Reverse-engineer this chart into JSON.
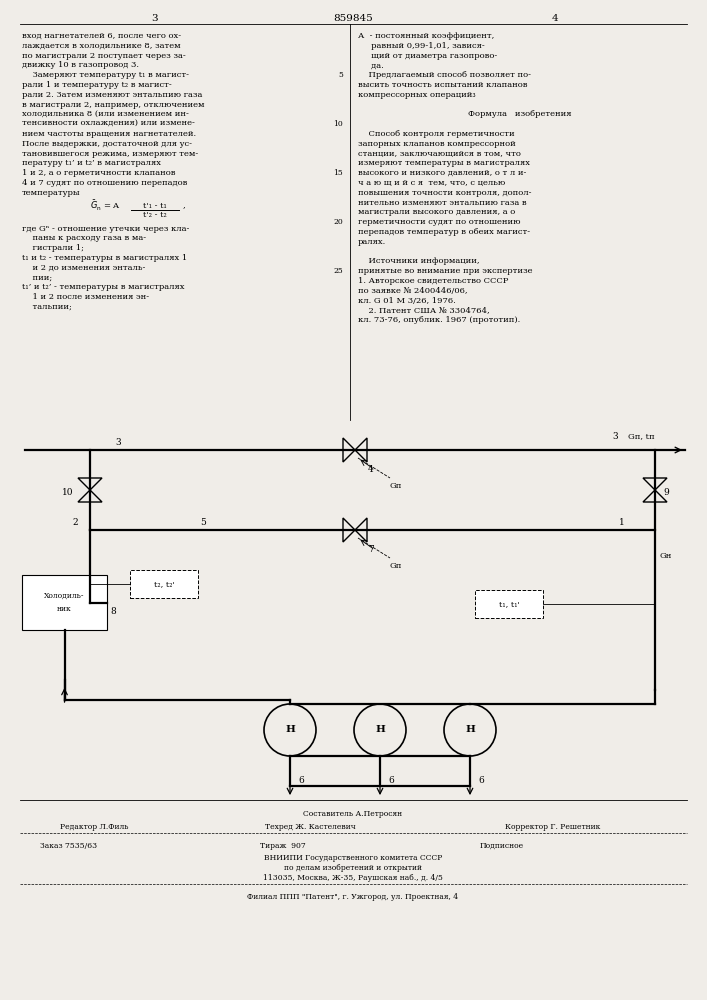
{
  "bg_color": "#f0ede8",
  "page_width": 7.07,
  "page_height": 10.0,
  "patent_number": "859845",
  "page_left": "3",
  "page_right": "4",
  "text_left_col": [
    "вход нагнетателей 6, после чего ох-",
    "лаждается в холодильнике 8, затем",
    "по магистрали 2 поступает через за-",
    "движку 10 в газопровод 3.",
    "    Замеряют температуру t₁ в магист-",
    "рали 1 и температуру t₂ в магист-",
    "рали 2. Затем изменяют энтальпию газа",
    "в магистрали 2, например, отключением",
    "холодильника 8 (или изменением ин-",
    "тенсивности охлаждения) или измене-",
    "нием частоты вращения нагнетателей.",
    "После выдержки, достаточной для ус-",
    "тановившегося режима, измеряют тем-",
    "пературу t₁’ и t₂’ в магистралях",
    "1 и 2, а о герметичности клапанов",
    "4 и 7 судят по отношению перепадов",
    "температуры"
  ],
  "text_left_where": [
    "где Gⁿ - отношение утечки через кла-",
    "    паны к расходу газа в ма-",
    "    гистрали 1;",
    "t₁ и t₂ - температуры в магистралях 1",
    "    и 2 до изменения энталь-",
    "    пии;",
    "t₁’ и t₂’ - температуры в магистралях",
    "    1 и 2 после изменения эн-",
    "    тальпии;"
  ],
  "text_right_col": [
    "А  - постоянный коэффициент,",
    "     равный 0,99-1,01, завися-",
    "     щий от диаметра газопрово-",
    "     да.",
    "    Предлагаемый способ позволяет по-",
    "высить точность испытаний клапанов",
    "компрессорных операций₃",
    "",
    "        Формула   изобретения",
    "",
    "    Способ контроля герметичности",
    "запорных клапанов компрессорной",
    "станции, заключающийся в том, что",
    "измеряют температуры в магистралях",
    "высокого и низкого давлений, о т л и-",
    "ч а ю щ и й с я  тем, что, с целью",
    "повышения точности контроля, допол-",
    "нительно изменяют энтальпию газа в",
    "магистрали высокого давления, а о",
    "герметичности судят по отношению",
    "перепадов температур в обеих магист-",
    "ралях.",
    "",
    "    Источники информации,",
    "принятые во внимание при экспертизе",
    "1. Авторское свидетельство СССР",
    "по заявке № 2400446/06,",
    "кл. G 01 M 3/26, 1976.",
    "    2. Патент США № 3304764,",
    "кл. 73-76, опублик. 1967 (прототип)."
  ],
  "footer_composer": "Составитель А.Петросян",
  "footer_editor": "Редактор Л.Филь",
  "footer_techred": "Техред Ж. Кастелевич",
  "footer_corrector": "Корректор Г. Решетник",
  "footer_order": "Заказ 7535/63",
  "footer_tirazh": "Тираж  907",
  "footer_podpisnoe": "Подписное",
  "footer_vniip1": "ВНИИПИ Государственного комитета СССР",
  "footer_vniip2": "по делам изобретений и открытий",
  "footer_vniip3": "113035, Москва, Ж-35, Раушская наб., д. 4/5",
  "footer_filial": "Филиал ППП \"Патент\", г. Ужгород, ул. Проектная, 4"
}
